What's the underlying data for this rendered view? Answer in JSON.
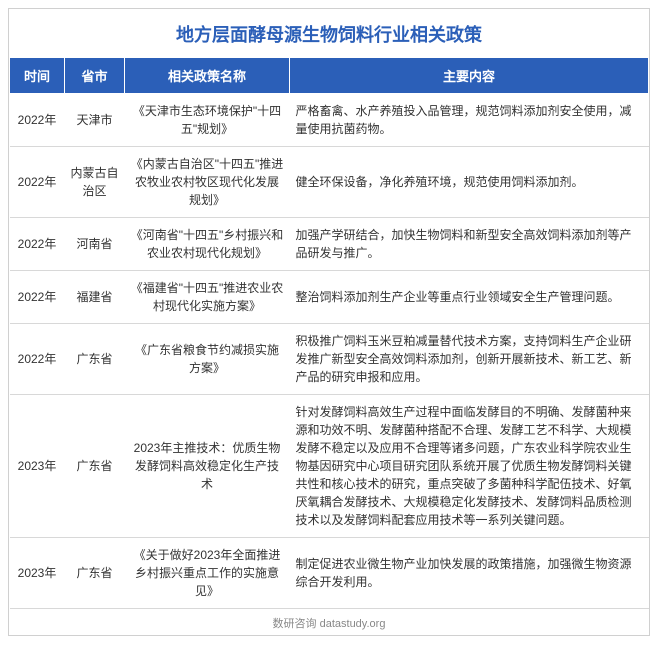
{
  "title": "地方层面酵母源生物饲料行业相关政策",
  "headers": {
    "time": "时间",
    "province": "省市",
    "policy": "相关政策名称",
    "content": "主要内容"
  },
  "rows": [
    {
      "time": "2022年",
      "province": "天津市",
      "policy": "《天津市生态环境保护\"十四五\"规划》",
      "content": "严格畜禽、水产养殖投入品管理，规范饲料添加剂安全使用，减量使用抗菌药物。"
    },
    {
      "time": "2022年",
      "province": "内蒙古自治区",
      "policy": "《内蒙古自治区\"十四五\"推进农牧业农村牧区现代化发展规划》",
      "content": "健全环保设备，净化养殖环境，规范使用饲料添加剂。"
    },
    {
      "time": "2022年",
      "province": "河南省",
      "policy": "《河南省\"十四五\"乡村振兴和农业农村现代化规划》",
      "content": "加强产学研结合，加快生物饲料和新型安全高效饲料添加剂等产品研发与推广。"
    },
    {
      "time": "2022年",
      "province": "福建省",
      "policy": "《福建省\"十四五\"推进农业农村现代化实施方案》",
      "content": "整治饲料添加剂生产企业等重点行业领域安全生产管理问题。"
    },
    {
      "time": "2022年",
      "province": "广东省",
      "policy": "《广东省粮食节约减损实施方案》",
      "content": "积极推广饲料玉米豆粕减量替代技术方案，支持饲料生产企业研发推广新型安全高效饲料添加剂，创新开展新技术、新工艺、新产品的研究申报和应用。"
    },
    {
      "time": "2023年",
      "province": "广东省",
      "policy": "2023年主推技术：优质生物发酵饲料高效稳定化生产技术",
      "content": "针对发酵饲料高效生产过程中面临发酵目的不明确、发酵菌种来源和功效不明、发酵菌种搭配不合理、发酵工艺不科学、大规模发酵不稳定以及应用不合理等诸多问题，广东农业科学院农业生物基因研究中心项目研究团队系统开展了优质生物发酵饲料关键共性和核心技术的研究，重点突破了多菌种科学配伍技术、好氧厌氧耦合发酵技术、大规模稳定化发酵技术、发酵饲料品质检测技术以及发酵饲料配套应用技术等一系列关键问题。"
    },
    {
      "time": "2023年",
      "province": "广东省",
      "policy": "《关于做好2023年全面推进乡村振兴重点工作的实施意见》",
      "content": "制定促进农业微生物产业加快发展的政策措施，加强微生物资源综合开发利用。"
    }
  ],
  "footer": "数研咨询 datastudy.org",
  "styling": {
    "title_color": "#2b5fb8",
    "header_bg": "#2b5fb8",
    "header_text_color": "#ffffff",
    "border_color": "#d0d0d0",
    "row_border_color": "#d8d8d8",
    "text_color": "#333333",
    "footer_color": "#888888",
    "title_fontsize": 18,
    "header_fontsize": 13,
    "cell_fontsize": 12,
    "footer_fontsize": 11
  }
}
